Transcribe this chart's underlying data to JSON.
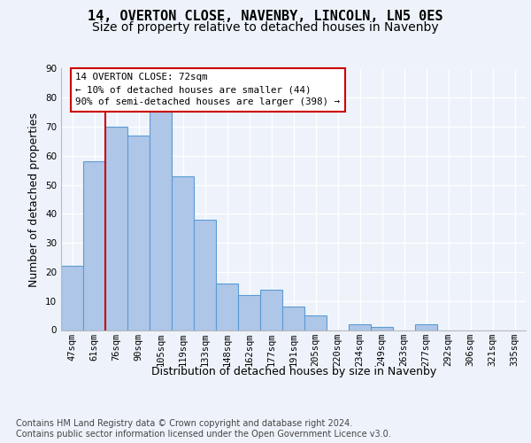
{
  "title": "14, OVERTON CLOSE, NAVENBY, LINCOLN, LN5 0ES",
  "subtitle": "Size of property relative to detached houses in Navenby",
  "xlabel": "Distribution of detached houses by size in Navenby",
  "ylabel": "Number of detached properties",
  "categories": [
    "47sqm",
    "61sqm",
    "76sqm",
    "90sqm",
    "105sqm",
    "119sqm",
    "133sqm",
    "148sqm",
    "162sqm",
    "177sqm",
    "191sqm",
    "205sqm",
    "220sqm",
    "234sqm",
    "249sqm",
    "263sqm",
    "277sqm",
    "292sqm",
    "306sqm",
    "321sqm",
    "335sqm"
  ],
  "values": [
    22,
    58,
    70,
    67,
    76,
    53,
    38,
    16,
    12,
    14,
    8,
    5,
    0,
    2,
    1,
    0,
    2,
    0,
    0,
    0,
    0
  ],
  "bar_color": "#aec6e8",
  "bar_edge_color": "#5b9bd5",
  "background_color": "#eef3fb",
  "vline_color": "#cc0000",
  "vline_x_bar_index": 1,
  "annotation_line1": "14 OVERTON CLOSE: 72sqm",
  "annotation_line2": "← 10% of detached houses are smaller (44)",
  "annotation_line3": "90% of semi-detached houses are larger (398) →",
  "annotation_box_edge_color": "#cc0000",
  "ylim": [
    0,
    90
  ],
  "yticks": [
    0,
    10,
    20,
    30,
    40,
    50,
    60,
    70,
    80,
    90
  ],
  "footer_text": "Contains HM Land Registry data © Crown copyright and database right 2024.\nContains public sector information licensed under the Open Government Licence v3.0.",
  "title_fontsize": 11,
  "subtitle_fontsize": 10,
  "xlabel_fontsize": 9,
  "ylabel_fontsize": 9,
  "tick_fontsize": 7.5,
  "footer_fontsize": 7
}
